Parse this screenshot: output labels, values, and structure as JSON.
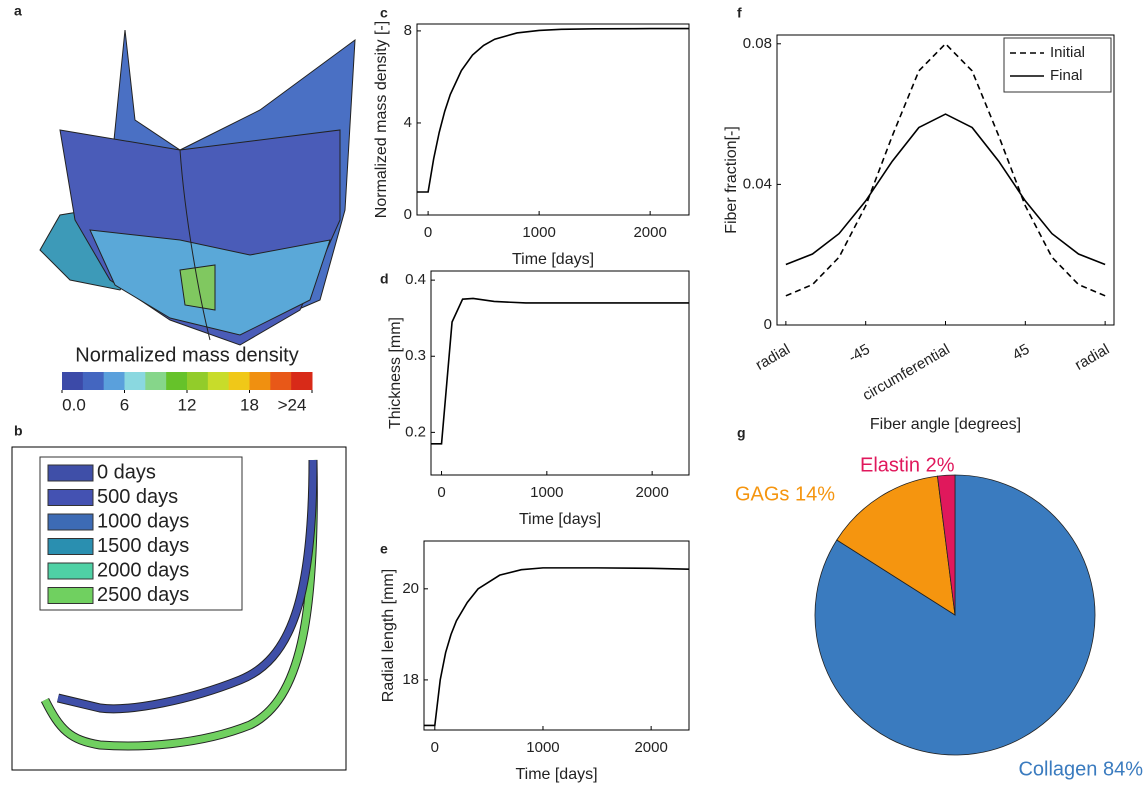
{
  "chart_data": [
    {
      "type": "render",
      "label": "a",
      "title": "Normalized mass density",
      "colors": [
        "#3c4aa8",
        "#4466c0",
        "#5aa0dc",
        "#8ad8e0",
        "#86d68a",
        "#66c22a",
        "#92cc2a",
        "#c8dc2a",
        "#f0c818",
        "#f09010",
        "#e85818",
        "#d82a18"
      ],
      "lim": [
        0,
        24
      ],
      "ticks": [
        {
          "value": 0,
          "label": "0.0"
        },
        6,
        12,
        18,
        {
          "value": 24,
          "label": ">24"
        }
      ]
    },
    {
      "type": "profiles",
      "label": "b",
      "series": [
        {
          "name": "0 days",
          "color": "#3f4fa8"
        },
        {
          "name": "500 days",
          "color": "#4452b2"
        },
        {
          "name": "1000 days",
          "color": "#3d6bb5"
        },
        {
          "name": "1500 days",
          "color": "#2a8fb0"
        },
        {
          "name": "2000 days",
          "color": "#4fd1a5"
        },
        {
          "name": "2500 days",
          "color": "#70d060"
        }
      ]
    },
    {
      "type": "line",
      "label": "c",
      "xlabel": "Time [days]",
      "ylabel": "Normalized mass density [-]",
      "x": [
        -100,
        0,
        50,
        100,
        150,
        200,
        300,
        400,
        500,
        600,
        800,
        1000,
        1200,
        1500,
        2000,
        2350
      ],
      "values": [
        1.0,
        1.0,
        2.44,
        3.59,
        4.51,
        5.24,
        6.28,
        6.95,
        7.37,
        7.64,
        7.91,
        8.02,
        8.07,
        8.09,
        8.1,
        8.1
      ],
      "xlim": [
        -100,
        2350
      ],
      "ylim": [
        0,
        8.3
      ],
      "xticks": [
        0,
        1000,
        2000
      ],
      "yticks": [
        0,
        4,
        8
      ],
      "color": "#000000"
    },
    {
      "type": "line",
      "label": "d",
      "xlabel": "Time [days]",
      "ylabel": "Thickness [mm]",
      "x": [
        -100,
        0,
        50,
        100,
        200,
        300,
        500,
        800,
        1200,
        2350
      ],
      "values": [
        0.185,
        0.185,
        0.265,
        0.345,
        0.375,
        0.376,
        0.372,
        0.37,
        0.37,
        0.37
      ],
      "xlim": [
        -100,
        2350
      ],
      "ylim": [
        0.144,
        0.412
      ],
      "xticks": [
        0,
        1000,
        2000
      ],
      "yticks": [
        0.2,
        0.3,
        0.4
      ],
      "color": "#000000"
    },
    {
      "type": "line",
      "label": "e",
      "xlabel": "Time [days]",
      "ylabel": "Radial length [mm]",
      "x": [
        -100,
        0,
        50,
        100,
        150,
        200,
        300,
        400,
        600,
        800,
        1000,
        1500,
        2000,
        2350
      ],
      "values": [
        17.0,
        17.0,
        18.0,
        18.6,
        19.0,
        19.3,
        19.7,
        20.0,
        20.3,
        20.42,
        20.46,
        20.46,
        20.45,
        20.43
      ],
      "xlim": [
        -100,
        2350
      ],
      "ylim": [
        16.9,
        21.05
      ],
      "xticks": [
        0,
        1000,
        2000
      ],
      "yticks": [
        18,
        20
      ],
      "color": "#000000"
    },
    {
      "type": "line",
      "label": "f",
      "xlabel": "Fiber angle [degrees]",
      "ylabel": "Fiber fraction[-]",
      "x": [
        -90,
        -75,
        -60,
        -45,
        -30,
        -15,
        0,
        15,
        30,
        45,
        60,
        75,
        90
      ],
      "series": [
        {
          "name": "Initial",
          "color": "#000000",
          "linestyle": "dashed",
          "values": [
            0.0083,
            0.0115,
            0.0193,
            0.0339,
            0.0538,
            0.0723,
            0.08,
            0.0723,
            0.0538,
            0.0339,
            0.0193,
            0.0115,
            0.0083
          ]
        },
        {
          "name": "Final",
          "color": "#000000",
          "linestyle": "solid",
          "values": [
            0.0172,
            0.0202,
            0.026,
            0.0353,
            0.0466,
            0.0562,
            0.06,
            0.0562,
            0.0466,
            0.0353,
            0.026,
            0.0202,
            0.0172
          ]
        }
      ],
      "xlim": [
        -95,
        95
      ],
      "ylim": [
        0,
        0.0825
      ],
      "xticks": [
        {
          "value": -90,
          "label": "radial"
        },
        -45,
        {
          "value": 0,
          "label": "circumferential"
        },
        45,
        {
          "value": 90,
          "label": "radial"
        }
      ],
      "yticks": [
        0,
        0.04,
        0.08
      ],
      "legend": "top-right"
    },
    {
      "type": "pie",
      "label": "g",
      "labels": [
        "Collagen 84%",
        "GAGs 14%",
        "Elastin 2%"
      ],
      "values": [
        84,
        14,
        2
      ],
      "colors": [
        "#3a7bbf",
        "#f5950f",
        "#e0185c"
      ]
    }
  ]
}
